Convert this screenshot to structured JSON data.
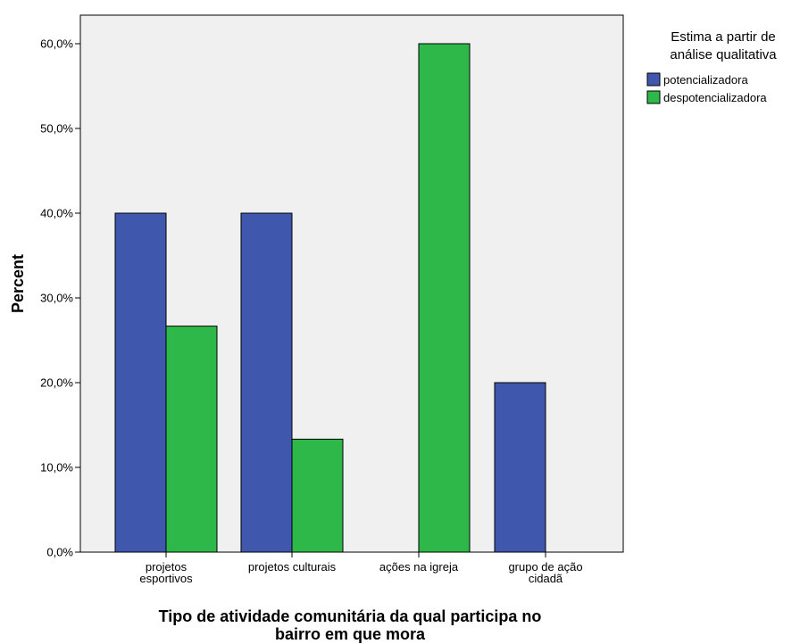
{
  "chart_data": {
    "type": "bar",
    "title": "",
    "xlabel_lines": [
      "Tipo de atividade comunitária da qual participa no",
      "bairro em que mora"
    ],
    "ylabel": "Percent",
    "ylim": [
      0,
      60
    ],
    "y_ticks": [
      0,
      10,
      20,
      30,
      40,
      50,
      60
    ],
    "y_tick_labels": [
      "0,0%",
      "10,0%",
      "20,0%",
      "30,0%",
      "40,0%",
      "50,0%",
      "60,0%"
    ],
    "categories": [
      [
        "projetos",
        "esportivos"
      ],
      [
        "projetos culturais"
      ],
      [
        "ações na igreja"
      ],
      [
        "grupo de ação",
        "cidadã"
      ]
    ],
    "series": [
      {
        "name": "potencializadora",
        "color": "#3f57ad",
        "values": [
          40,
          40,
          0,
          20
        ]
      },
      {
        "name": "despotencializadora",
        "color": "#2eb84a",
        "values": [
          26.67,
          13.33,
          60,
          0
        ]
      }
    ],
    "legend": {
      "title_lines": [
        "Estima a partir de",
        "análise qualitativa"
      ],
      "placement": "right"
    },
    "plot_background": "#f0f0f0",
    "grid": false
  }
}
